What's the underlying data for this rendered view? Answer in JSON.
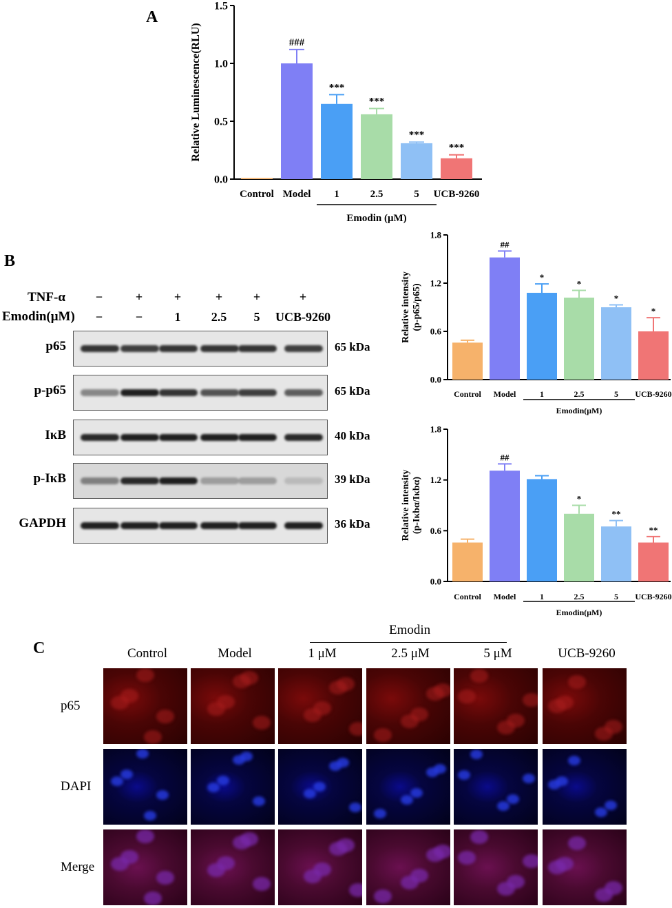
{
  "panels": {
    "a_letter": "A",
    "b_letter": "B",
    "c_letter": "C"
  },
  "chart_data": [
    {
      "type": "bar",
      "title": "",
      "ylabel": "Relative Luminescence(RLU)",
      "ylim": [
        0,
        1.5
      ],
      "yticks": [
        "0.0",
        "0.5",
        "1.0",
        "1.5"
      ],
      "categories": [
        "Control",
        "Model",
        "1",
        "2.5",
        "5",
        "UCB-9260"
      ],
      "values": [
        0.01,
        1.0,
        0.65,
        0.56,
        0.31,
        0.18
      ],
      "errors": [
        0.0,
        0.12,
        0.08,
        0.05,
        0.01,
        0.03
      ],
      "annotations": [
        "",
        "###",
        "***",
        "***",
        "***",
        "***"
      ],
      "colors": [
        "#F6B26B",
        "#7F7FF5",
        "#4A9FF5",
        "#A8DCA8",
        "#8FC0F5",
        "#F07575"
      ],
      "group_label": "Emodin (μM)"
    },
    {
      "type": "bar",
      "title": "",
      "ylabel": "Relative intensity",
      "ylabel2": "(p-p65/p65)",
      "ylim": [
        0,
        1.8
      ],
      "yticks": [
        "0.0",
        "0.6",
        "1.2",
        "1.8"
      ],
      "categories": [
        "Control",
        "Model",
        "1",
        "2.5",
        "5",
        "UCB-9260"
      ],
      "values": [
        0.46,
        1.52,
        1.08,
        1.02,
        0.9,
        0.6
      ],
      "errors": [
        0.03,
        0.08,
        0.11,
        0.09,
        0.03,
        0.17
      ],
      "annotations": [
        "",
        "##",
        "*",
        "*",
        "*",
        "*"
      ],
      "colors": [
        "#F6B26B",
        "#7F7FF5",
        "#4A9FF5",
        "#A8DCA8",
        "#8FC0F5",
        "#F07575"
      ],
      "group_label": "Emodin(μM)"
    },
    {
      "type": "bar",
      "title": "",
      "ylabel": "Relative intensity",
      "ylabel2": "(p-Iκbα/Iκbα)",
      "ylim": [
        0,
        1.8
      ],
      "yticks": [
        "0.0",
        "0.6",
        "1.2",
        "1.8"
      ],
      "categories": [
        "Control",
        "Model",
        "1",
        "2.5",
        "5",
        "UCB-9260"
      ],
      "values": [
        0.46,
        1.31,
        1.21,
        0.8,
        0.65,
        0.46
      ],
      "errors": [
        0.04,
        0.08,
        0.04,
        0.1,
        0.07,
        0.07
      ],
      "annotations": [
        "",
        "##",
        "",
        "*",
        "**",
        "**"
      ],
      "colors": [
        "#F6B26B",
        "#7F7FF5",
        "#4A9FF5",
        "#A8DCA8",
        "#8FC0F5",
        "#F07575"
      ],
      "group_label": "Emodin(μM)"
    }
  ],
  "western": {
    "tnf_label": "TNF-α",
    "emodin_label": "Emodin(μM)",
    "tnf_values": [
      "−",
      "+",
      "+",
      "+",
      "+",
      "+"
    ],
    "emodin_values": [
      "−",
      "−",
      "1",
      "2.5",
      "5",
      "UCB-9260"
    ],
    "blots": [
      {
        "name": "p65",
        "kda": "65 kDa"
      },
      {
        "name": "p-p65",
        "kda": "65 kDa"
      },
      {
        "name": "IκB",
        "kda": "40 kDa"
      },
      {
        "name": "p-IκB",
        "kda": "39 kDa"
      },
      {
        "name": "GAPDH",
        "kda": "36 kDa"
      }
    ]
  },
  "microscopy": {
    "group_label": "Emodin",
    "columns": [
      "Control",
      "Model",
      "1 μM",
      "2.5 μM",
      "5 μM",
      "UCB-9260"
    ],
    "rows": [
      "p65",
      "DAPI",
      "Merge"
    ]
  }
}
